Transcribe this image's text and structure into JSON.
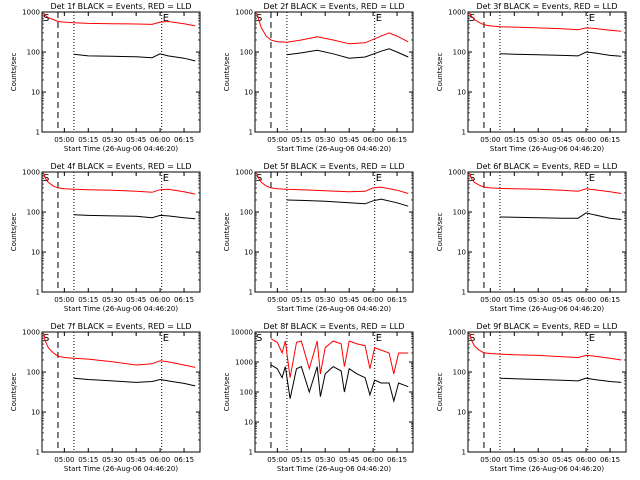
{
  "chart_data": [
    {
      "type": "line",
      "title": "Det 1f BLACK = Events, RED = LLD",
      "xlabel": "Start Time (26-Aug-06 04:46:20)",
      "ylabel": "Counts/sec",
      "yscale": "log",
      "ylim": [
        1,
        1000
      ],
      "ytick_labels": [
        "1",
        "10",
        "100",
        "1000"
      ],
      "xlim": [
        "04:46",
        "06:25"
      ],
      "xtick_labels": [
        "05:00",
        "05:15",
        "05:30",
        "05:45",
        "06:00",
        "06:15"
      ],
      "start_marker": "S",
      "end_marker": "E",
      "markers": {
        "dashed": "04:56",
        "dotted": [
          "05:06",
          "06:01"
        ]
      },
      "series": [
        {
          "color": "#ff0000",
          "x": [
            "04:47",
            "04:48",
            "04:50",
            "04:53",
            "04:56",
            "05:00",
            "05:06",
            "05:15",
            "05:30",
            "05:45",
            "05:55",
            "06:00",
            "06:05",
            "06:15",
            "06:22"
          ],
          "y": [
            950,
            820,
            720,
            650,
            580,
            560,
            540,
            520,
            510,
            500,
            490,
            560,
            580,
            510,
            450
          ]
        },
        {
          "color": "#000000",
          "x": [
            "05:06",
            "05:15",
            "05:30",
            "05:45",
            "05:55",
            "06:00",
            "06:05",
            "06:15",
            "06:22"
          ],
          "y": [
            88,
            80,
            78,
            76,
            72,
            90,
            80,
            70,
            60
          ]
        }
      ]
    },
    {
      "type": "line",
      "title": "Det 2f BLACK = Events, RED = LLD",
      "xlabel": "Start Time (26-Aug-06 04:46:20)",
      "ylabel": "Counts/sec",
      "yscale": "log",
      "ylim": [
        1,
        1000
      ],
      "ytick_labels": [
        "1",
        "10",
        "100",
        "1000"
      ],
      "xlim": [
        "04:46",
        "06:25"
      ],
      "xtick_labels": [
        "05:00",
        "05:15",
        "05:30",
        "05:45",
        "06:00",
        "06:15"
      ],
      "start_marker": "S",
      "end_marker": "E",
      "markers": {
        "dashed": "04:56",
        "dotted": [
          "05:06",
          "06:01"
        ]
      },
      "series": [
        {
          "color": "#ff0000",
          "x": [
            "04:47",
            "04:48",
            "04:50",
            "04:53",
            "04:56",
            "05:00",
            "05:06",
            "05:15",
            "05:25",
            "05:35",
            "05:45",
            "05:55",
            "06:05",
            "06:10",
            "06:15",
            "06:22"
          ],
          "y": [
            950,
            700,
            400,
            250,
            200,
            180,
            175,
            200,
            240,
            200,
            160,
            170,
            250,
            300,
            250,
            180
          ]
        },
        {
          "color": "#000000",
          "x": [
            "05:06",
            "05:15",
            "05:25",
            "05:35",
            "05:45",
            "05:55",
            "06:05",
            "06:10",
            "06:15",
            "06:22"
          ],
          "y": [
            85,
            95,
            110,
            90,
            70,
            75,
            105,
            120,
            100,
            75
          ]
        }
      ]
    },
    {
      "type": "line",
      "title": "Det 3f BLACK = Events, RED = LLD",
      "xlabel": "Start Time (26-Aug-06 04:46:20)",
      "ylabel": "Counts/sec",
      "yscale": "log",
      "ylim": [
        1,
        1000
      ],
      "ytick_labels": [
        "1",
        "10",
        "100",
        "1000"
      ],
      "xlim": [
        "04:46",
        "06:25"
      ],
      "xtick_labels": [
        "05:00",
        "05:15",
        "05:30",
        "05:45",
        "06:00",
        "06:15"
      ],
      "start_marker": "S",
      "end_marker": "E",
      "markers": {
        "dashed": "04:56",
        "dotted": [
          "05:06",
          "06:01"
        ]
      },
      "series": [
        {
          "color": "#ff0000",
          "x": [
            "04:47",
            "04:48",
            "04:50",
            "04:53",
            "04:56",
            "05:00",
            "05:06",
            "05:15",
            "05:30",
            "05:45",
            "05:55",
            "06:00",
            "06:05",
            "06:15",
            "06:22"
          ],
          "y": [
            950,
            800,
            650,
            550,
            480,
            450,
            430,
            420,
            400,
            380,
            360,
            400,
            390,
            350,
            330
          ]
        },
        {
          "color": "#000000",
          "x": [
            "05:06",
            "05:15",
            "05:30",
            "05:45",
            "05:55",
            "06:00",
            "06:05",
            "06:15",
            "06:22"
          ],
          "y": [
            90,
            88,
            85,
            82,
            80,
            100,
            95,
            82,
            78
          ]
        }
      ]
    },
    {
      "type": "line",
      "title": "Det 4f BLACK = Events, RED = LLD",
      "xlabel": "Start Time (26-Aug-06 04:46:20)",
      "ylabel": "Counts/sec",
      "yscale": "log",
      "ylim": [
        1,
        1000
      ],
      "ytick_labels": [
        "1",
        "10",
        "100",
        "1000"
      ],
      "xlim": [
        "04:46",
        "06:25"
      ],
      "xtick_labels": [
        "05:00",
        "05:15",
        "05:30",
        "05:45",
        "06:00",
        "06:15"
      ],
      "start_marker": "S",
      "end_marker": "E",
      "markers": {
        "dashed": "04:56",
        "dotted": [
          "05:06",
          "06:01"
        ]
      },
      "series": [
        {
          "color": "#ff0000",
          "x": [
            "04:47",
            "04:48",
            "04:50",
            "04:53",
            "04:56",
            "05:00",
            "05:06",
            "05:15",
            "05:30",
            "05:45",
            "05:55",
            "06:00",
            "06:05",
            "06:15",
            "06:22"
          ],
          "y": [
            950,
            700,
            550,
            450,
            400,
            380,
            370,
            360,
            350,
            330,
            310,
            360,
            370,
            320,
            280
          ]
        },
        {
          "color": "#000000",
          "x": [
            "05:06",
            "05:15",
            "05:30",
            "05:45",
            "05:55",
            "06:00",
            "06:05",
            "06:15",
            "06:22"
          ],
          "y": [
            85,
            82,
            80,
            78,
            72,
            82,
            80,
            72,
            68
          ]
        }
      ]
    },
    {
      "type": "line",
      "title": "Det 5f BLACK = Events, RED = LLD",
      "xlabel": "Start Time (26-Aug-06 04:46:20)",
      "ylabel": "Counts/sec",
      "yscale": "log",
      "ylim": [
        1,
        1000
      ],
      "ytick_labels": [
        "1",
        "10",
        "100",
        "1000"
      ],
      "xlim": [
        "04:46",
        "06:25"
      ],
      "xtick_labels": [
        "05:00",
        "05:15",
        "05:30",
        "05:45",
        "06:00",
        "06:15"
      ],
      "start_marker": "S",
      "end_marker": "E",
      "markers": {
        "dashed": "04:56",
        "dotted": [
          "05:06",
          "06:01"
        ]
      },
      "series": [
        {
          "color": "#ff0000",
          "x": [
            "04:47",
            "04:48",
            "04:50",
            "04:53",
            "04:56",
            "05:00",
            "05:06",
            "05:15",
            "05:30",
            "05:45",
            "05:55",
            "06:00",
            "06:05",
            "06:15",
            "06:22"
          ],
          "y": [
            950,
            720,
            550,
            450,
            400,
            380,
            370,
            360,
            340,
            320,
            330,
            400,
            420,
            350,
            290
          ]
        },
        {
          "color": "#000000",
          "x": [
            "05:06",
            "05:15",
            "05:30",
            "05:45",
            "05:55",
            "06:00",
            "06:05",
            "06:15",
            "06:22"
          ],
          "y": [
            200,
            195,
            185,
            170,
            160,
            190,
            210,
            170,
            140
          ]
        }
      ]
    },
    {
      "type": "line",
      "title": "Det 6f BLACK = Events, RED = LLD",
      "xlabel": "Start Time (26-Aug-06 04:46:20)",
      "ylabel": "Counts/sec",
      "yscale": "log",
      "ylim": [
        1,
        1000
      ],
      "ytick_labels": [
        "1",
        "10",
        "100",
        "1000"
      ],
      "xlim": [
        "04:46",
        "06:25"
      ],
      "xtick_labels": [
        "05:00",
        "05:15",
        "05:30",
        "05:45",
        "06:00",
        "06:15"
      ],
      "start_marker": "S",
      "end_marker": "E",
      "markers": {
        "dashed": "04:56",
        "dotted": [
          "05:06",
          "06:01"
        ]
      },
      "series": [
        {
          "color": "#ff0000",
          "x": [
            "04:47",
            "04:48",
            "04:50",
            "04:53",
            "04:56",
            "05:00",
            "05:06",
            "05:15",
            "05:30",
            "05:45",
            "05:55",
            "06:00",
            "06:05",
            "06:15",
            "06:22"
          ],
          "y": [
            950,
            700,
            550,
            470,
            420,
            400,
            390,
            380,
            370,
            350,
            330,
            380,
            360,
            320,
            290
          ]
        },
        {
          "color": "#000000",
          "x": [
            "05:06",
            "05:15",
            "05:30",
            "05:45",
            "05:55",
            "06:00",
            "06:05",
            "06:15",
            "06:22"
          ],
          "y": [
            75,
            74,
            72,
            70,
            70,
            95,
            85,
            70,
            65
          ]
        }
      ]
    },
    {
      "type": "line",
      "title": "Det 7f BLACK = Events, RED = LLD",
      "xlabel": "Start Time (26-Aug-06 04:46:20)",
      "ylabel": "Counts/sec",
      "yscale": "log",
      "ylim": [
        1,
        1000
      ],
      "ytick_labels": [
        "1",
        "10",
        "100",
        "1000"
      ],
      "xlim": [
        "04:46",
        "06:25"
      ],
      "xtick_labels": [
        "05:00",
        "05:15",
        "05:30",
        "05:45",
        "06:00",
        "06:15"
      ],
      "start_marker": "S",
      "end_marker": "E",
      "markers": {
        "dashed": "04:56",
        "dotted": [
          "05:06",
          "06:01"
        ]
      },
      "series": [
        {
          "color": "#ff0000",
          "x": [
            "04:47",
            "04:48",
            "04:50",
            "04:53",
            "04:56",
            "05:00",
            "05:06",
            "05:15",
            "05:30",
            "05:45",
            "05:55",
            "06:00",
            "06:05",
            "06:15",
            "06:22"
          ],
          "y": [
            950,
            600,
            400,
            300,
            250,
            230,
            220,
            210,
            180,
            150,
            160,
            190,
            180,
            150,
            130
          ]
        },
        {
          "color": "#000000",
          "x": [
            "05:06",
            "05:15",
            "05:30",
            "05:45",
            "05:55",
            "06:00",
            "06:05",
            "06:15",
            "06:22"
          ],
          "y": [
            70,
            65,
            60,
            55,
            58,
            65,
            60,
            52,
            45
          ]
        }
      ]
    },
    {
      "type": "line",
      "title": "Det 8f BLACK = Events, RED = LLD",
      "xlabel": "Start Time (26-Aug-06 04:46:20)",
      "ylabel": "Counts/sec",
      "yscale": "log",
      "ylim": [
        1,
        10000
      ],
      "ytick_labels": [
        "1",
        "10",
        "100",
        "1000",
        "10000"
      ],
      "xlim": [
        "04:46",
        "06:25"
      ],
      "xtick_labels": [
        "05:00",
        "05:15",
        "05:30",
        "05:45",
        "06:00",
        "06:15"
      ],
      "start_marker": "S",
      "end_marker": "E",
      "markers": {
        "dashed": "04:56",
        "dotted": [
          "05:06",
          "06:01"
        ]
      },
      "series": [
        {
          "color": "#ff0000",
          "x": [
            "04:56",
            "05:00",
            "05:03",
            "05:05",
            "05:08",
            "05:12",
            "05:15",
            "05:20",
            "05:25",
            "05:27",
            "05:30",
            "05:35",
            "05:40",
            "05:42",
            "05:45",
            "05:50",
            "05:55",
            "05:58",
            "06:01",
            "06:05",
            "06:10",
            "06:13",
            "06:16",
            "06:22"
          ],
          "y": [
            6000,
            4500,
            2000,
            5000,
            300,
            4500,
            5000,
            600,
            5000,
            400,
            3000,
            5000,
            4000,
            700,
            5000,
            4000,
            3500,
            600,
            3000,
            2500,
            2000,
            400,
            2000,
            2000
          ]
        },
        {
          "color": "#000000",
          "x": [
            "04:56",
            "05:00",
            "05:03",
            "05:05",
            "05:08",
            "05:12",
            "05:15",
            "05:20",
            "05:25",
            "05:27",
            "05:30",
            "05:35",
            "05:40",
            "05:42",
            "05:45",
            "05:50",
            "05:55",
            "05:58",
            "06:01",
            "06:05",
            "06:10",
            "06:13",
            "06:16",
            "06:22"
          ],
          "y": [
            800,
            600,
            300,
            700,
            60,
            600,
            700,
            100,
            700,
            70,
            400,
            700,
            500,
            100,
            600,
            400,
            300,
            80,
            250,
            200,
            200,
            50,
            200,
            150
          ]
        }
      ]
    },
    {
      "type": "line",
      "title": "Det 9f BLACK = Events, RED = LLD",
      "xlabel": "Start Time (26-Aug-06 04:46:20)",
      "ylabel": "Counts/sec",
      "yscale": "log",
      "ylim": [
        1,
        1000
      ],
      "ytick_labels": [
        "1",
        "10",
        "100",
        "1000"
      ],
      "xlim": [
        "04:46",
        "06:25"
      ],
      "xtick_labels": [
        "05:00",
        "05:15",
        "05:30",
        "05:45",
        "06:00",
        "06:15"
      ],
      "start_marker": "S",
      "end_marker": "E",
      "markers": {
        "dashed": "04:56",
        "dotted": [
          "05:06",
          "06:01"
        ]
      },
      "series": [
        {
          "color": "#ff0000",
          "x": [
            "04:47",
            "04:48",
            "04:50",
            "04:53",
            "04:56",
            "05:00",
            "05:06",
            "05:15",
            "05:30",
            "05:45",
            "05:55",
            "06:00",
            "06:05",
            "06:15",
            "06:22"
          ],
          "y": [
            950,
            650,
            450,
            350,
            300,
            290,
            280,
            270,
            260,
            240,
            230,
            260,
            250,
            220,
            200
          ]
        },
        {
          "color": "#000000",
          "x": [
            "05:06",
            "05:15",
            "05:30",
            "05:45",
            "05:55",
            "06:00",
            "06:05",
            "06:15",
            "06:22"
          ],
          "y": [
            70,
            68,
            65,
            62,
            60,
            70,
            65,
            58,
            55
          ]
        }
      ]
    }
  ]
}
